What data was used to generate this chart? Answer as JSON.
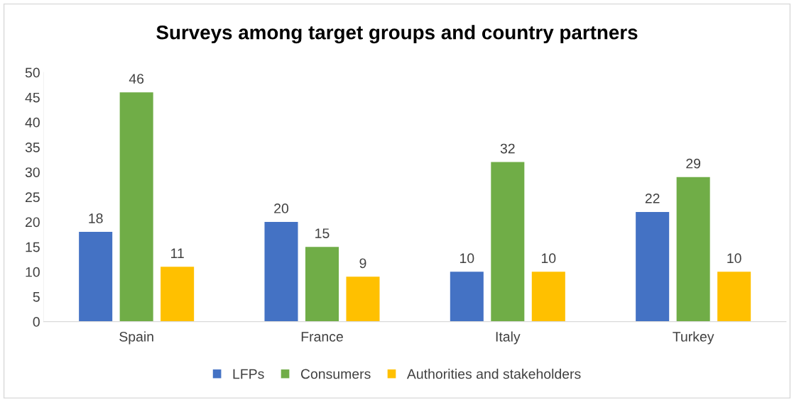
{
  "chart_data": {
    "type": "bar",
    "title": "Surveys among target groups and country partners",
    "categories": [
      "Spain",
      "France",
      "Italy",
      "Turkey"
    ],
    "series": [
      {
        "name": "LFPs",
        "color": "#4472c4",
        "values": [
          18,
          20,
          10,
          22
        ]
      },
      {
        "name": "Consumers",
        "color": "#70ad47",
        "values": [
          46,
          15,
          32,
          29
        ]
      },
      {
        "name": "Authorities and stakeholders",
        "color": "#ffc000",
        "values": [
          11,
          9,
          10,
          10
        ]
      }
    ],
    "ylim": [
      0,
      50
    ],
    "yticks": [
      0,
      5,
      10,
      15,
      20,
      25,
      30,
      35,
      40,
      45,
      50
    ],
    "data_labels": true,
    "legend": "bottom",
    "grid": false
  }
}
